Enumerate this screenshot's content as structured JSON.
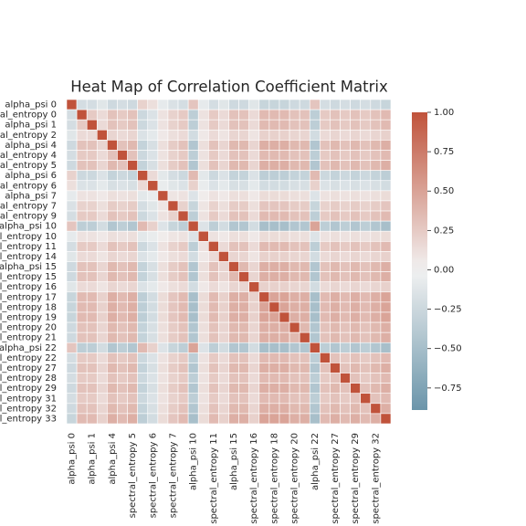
{
  "chart_data": {
    "type": "heatmap",
    "title": "Heat Map of Correlation Coefficient Matrix",
    "y_categories": [
      "alpha_psi 0",
      "spectral_entropy 0",
      "alpha_psi 1",
      "spectral_entropy 2",
      "alpha_psi 4",
      "spectral_entropy 4",
      "spectral_entropy 5",
      "alpha_psi 6",
      "spectral_entropy 6",
      "alpha_psi 7",
      "spectral_entropy 7",
      "spectral_entropy 9",
      "alpha_psi 10",
      "spectral_entropy 10",
      "spectral_entropy 11",
      "spectral_entropy 14",
      "alpha_psi 15",
      "spectral_entropy 15",
      "spectral_entropy 16",
      "spectral_entropy 17",
      "spectral_entropy 18",
      "spectral_entropy 19",
      "spectral_entropy 20",
      "spectral_entropy 21",
      "alpha_psi 22",
      "spectral_entropy 22",
      "spectral_entropy 27",
      "spectral_entropy 28",
      "spectral_entropy 29",
      "spectral_entropy 31",
      "spectral_entropy 32",
      "spectral_entropy 33"
    ],
    "x_categories": [
      "alpha_psi 0",
      null,
      "alpha_psi 1",
      null,
      "alpha_psi 4",
      null,
      "spectral_entropy 5",
      null,
      "spectral_entropy 6",
      null,
      "spectral_entropy 7",
      null,
      "alpha_psi 10",
      null,
      "spectral_entropy 11",
      null,
      "alpha_psi 15",
      null,
      "spectral_entropy 16",
      null,
      "spectral_entropy 18",
      null,
      "spectral_entropy 20",
      null,
      "alpha_psi 22",
      null,
      "spectral_entropy 27",
      null,
      "spectral_entropy 29",
      null,
      "spectral_entropy 32",
      null
    ],
    "values": [
      [
        1,
        -0.2,
        -0.2,
        -0.12,
        -0.24,
        -0.2,
        -0.24,
        0.2,
        0.12,
        -0.08,
        -0.16,
        -0.2,
        0.28,
        -0.08,
        -0.2,
        -0.12,
        -0.24,
        -0.24,
        -0.12,
        -0.28,
        -0.28,
        -0.28,
        -0.24,
        -0.24,
        0.28,
        -0.2,
        -0.24,
        -0.2,
        -0.24,
        -0.2,
        -0.24,
        -0.28
      ],
      [
        -0.2,
        1,
        0.25,
        0.15,
        0.3,
        0.25,
        0.3,
        -0.25,
        -0.15,
        0.1,
        0.2,
        0.25,
        -0.35,
        0.1,
        0.25,
        0.15,
        0.3,
        0.3,
        0.15,
        0.35,
        0.35,
        0.35,
        0.3,
        0.3,
        -0.35,
        0.25,
        0.3,
        0.25,
        0.3,
        0.25,
        0.3,
        0.35
      ],
      [
        -0.2,
        0.25,
        1,
        0.15,
        0.3,
        0.25,
        0.3,
        -0.25,
        -0.15,
        0.1,
        0.2,
        0.25,
        -0.35,
        0.1,
        0.25,
        0.15,
        0.3,
        0.3,
        0.15,
        0.35,
        0.35,
        0.35,
        0.3,
        0.3,
        -0.35,
        0.25,
        0.3,
        0.25,
        0.3,
        0.25,
        0.3,
        0.35
      ],
      [
        -0.12,
        0.15,
        0.15,
        1,
        0.18,
        0.15,
        0.18,
        -0.15,
        -0.09,
        0.06,
        0.12,
        0.15,
        -0.21,
        0.06,
        0.15,
        0.09,
        0.18,
        0.18,
        0.09,
        0.21,
        0.21,
        0.21,
        0.18,
        0.18,
        -0.21,
        0.15,
        0.18,
        0.15,
        0.18,
        0.15,
        0.18,
        0.21
      ],
      [
        -0.24,
        0.3,
        0.3,
        0.18,
        1,
        0.3,
        0.36,
        -0.3,
        -0.18,
        0.12,
        0.24,
        0.3,
        -0.42,
        0.12,
        0.3,
        0.18,
        0.36,
        0.36,
        0.18,
        0.42,
        0.42,
        0.42,
        0.36,
        0.36,
        -0.42,
        0.3,
        0.36,
        0.3,
        0.36,
        0.3,
        0.36,
        0.42
      ],
      [
        -0.2,
        0.25,
        0.25,
        0.15,
        0.3,
        1,
        0.3,
        -0.25,
        -0.15,
        0.1,
        0.2,
        0.25,
        -0.35,
        0.1,
        0.25,
        0.15,
        0.3,
        0.3,
        0.15,
        0.35,
        0.35,
        0.35,
        0.3,
        0.3,
        -0.35,
        0.25,
        0.3,
        0.25,
        0.3,
        0.25,
        0.3,
        0.35
      ],
      [
        -0.24,
        0.3,
        0.3,
        0.18,
        0.36,
        0.3,
        1,
        -0.3,
        -0.18,
        0.12,
        0.24,
        0.3,
        -0.42,
        0.12,
        0.3,
        0.18,
        0.36,
        0.36,
        0.18,
        0.42,
        0.42,
        0.42,
        0.36,
        0.36,
        -0.42,
        0.3,
        0.36,
        0.3,
        0.36,
        0.3,
        0.36,
        0.42
      ],
      [
        0.2,
        -0.25,
        -0.25,
        -0.15,
        -0.3,
        -0.25,
        -0.3,
        1,
        0.15,
        -0.1,
        -0.2,
        -0.25,
        0.35,
        -0.1,
        -0.25,
        -0.15,
        -0.3,
        -0.3,
        -0.15,
        -0.35,
        -0.35,
        -0.35,
        -0.3,
        -0.3,
        0.35,
        -0.25,
        -0.3,
        -0.25,
        -0.3,
        -0.25,
        -0.3,
        -0.35
      ],
      [
        0.12,
        -0.15,
        -0.15,
        -0.09,
        -0.18,
        -0.15,
        -0.18,
        0.15,
        1,
        -0.06,
        -0.12,
        -0.15,
        0.21,
        -0.06,
        -0.15,
        -0.09,
        -0.18,
        -0.18,
        -0.09,
        -0.21,
        -0.21,
        -0.21,
        -0.18,
        -0.18,
        0.21,
        -0.15,
        -0.18,
        -0.15,
        -0.18,
        -0.15,
        -0.18,
        -0.21
      ],
      [
        -0.08,
        0.1,
        0.1,
        0.06,
        0.12,
        0.1,
        0.12,
        -0.1,
        -0.06,
        1,
        0.08,
        0.1,
        -0.14,
        0.04,
        0.1,
        0.06,
        0.12,
        0.12,
        0.06,
        0.14,
        0.14,
        0.14,
        0.12,
        0.12,
        -0.14,
        0.1,
        0.12,
        0.1,
        0.12,
        0.1,
        0.12,
        0.14
      ],
      [
        -0.16,
        0.2,
        0.2,
        0.12,
        0.24,
        0.2,
        0.24,
        -0.2,
        -0.12,
        0.08,
        1,
        0.2,
        -0.28,
        0.08,
        0.2,
        0.12,
        0.24,
        0.24,
        0.12,
        0.28,
        0.28,
        0.28,
        0.24,
        0.24,
        -0.28,
        0.2,
        0.24,
        0.2,
        0.24,
        0.2,
        0.24,
        0.28
      ],
      [
        -0.2,
        0.25,
        0.25,
        0.15,
        0.3,
        0.25,
        0.3,
        -0.25,
        -0.15,
        0.1,
        0.2,
        1,
        -0.35,
        0.1,
        0.25,
        0.15,
        0.3,
        0.3,
        0.15,
        0.35,
        0.35,
        0.35,
        0.3,
        0.3,
        -0.35,
        0.25,
        0.3,
        0.25,
        0.3,
        0.25,
        0.3,
        0.35
      ],
      [
        0.28,
        -0.35,
        -0.35,
        -0.21,
        -0.42,
        -0.35,
        -0.42,
        0.35,
        0.21,
        -0.14,
        -0.28,
        -0.35,
        1,
        -0.14,
        -0.35,
        -0.21,
        -0.42,
        -0.42,
        -0.21,
        -0.49,
        -0.49,
        -0.49,
        -0.42,
        -0.42,
        0.49,
        -0.35,
        -0.42,
        -0.35,
        -0.42,
        -0.35,
        -0.42,
        -0.49
      ],
      [
        -0.08,
        0.1,
        0.1,
        0.06,
        0.12,
        0.1,
        0.12,
        -0.1,
        -0.06,
        0.04,
        0.08,
        0.1,
        -0.14,
        1,
        0.1,
        0.06,
        0.12,
        0.12,
        0.06,
        0.14,
        0.14,
        0.14,
        0.12,
        0.12,
        -0.14,
        0.1,
        0.12,
        0.1,
        0.12,
        0.1,
        0.12,
        0.14
      ],
      [
        -0.2,
        0.25,
        0.25,
        0.15,
        0.3,
        0.25,
        0.3,
        -0.25,
        -0.15,
        0.1,
        0.2,
        0.25,
        -0.35,
        0.1,
        1,
        0.15,
        0.3,
        0.3,
        0.15,
        0.35,
        0.35,
        0.35,
        0.3,
        0.3,
        -0.35,
        0.25,
        0.3,
        0.25,
        0.3,
        0.25,
        0.3,
        0.35
      ],
      [
        -0.12,
        0.15,
        0.15,
        0.09,
        0.18,
        0.15,
        0.18,
        -0.15,
        -0.09,
        0.06,
        0.12,
        0.15,
        -0.21,
        0.06,
        0.15,
        1,
        0.18,
        0.18,
        0.09,
        0.21,
        0.21,
        0.21,
        0.18,
        0.18,
        -0.21,
        0.15,
        0.18,
        0.15,
        0.18,
        0.15,
        0.18,
        0.21
      ],
      [
        -0.24,
        0.3,
        0.3,
        0.18,
        0.36,
        0.3,
        0.36,
        -0.3,
        -0.18,
        0.12,
        0.24,
        0.3,
        -0.42,
        0.12,
        0.3,
        0.18,
        1,
        0.36,
        0.18,
        0.42,
        0.42,
        0.42,
        0.36,
        0.36,
        -0.42,
        0.3,
        0.36,
        0.3,
        0.36,
        0.3,
        0.36,
        0.42
      ],
      [
        -0.24,
        0.3,
        0.3,
        0.18,
        0.36,
        0.3,
        0.36,
        -0.3,
        -0.18,
        0.12,
        0.24,
        0.3,
        -0.42,
        0.12,
        0.3,
        0.18,
        0.36,
        1,
        0.18,
        0.42,
        0.42,
        0.42,
        0.36,
        0.36,
        -0.42,
        0.3,
        0.36,
        0.3,
        0.36,
        0.3,
        0.36,
        0.42
      ],
      [
        -0.12,
        0.15,
        0.15,
        0.09,
        0.18,
        0.15,
        0.18,
        -0.15,
        -0.09,
        0.06,
        0.12,
        0.15,
        -0.21,
        0.06,
        0.15,
        0.09,
        0.18,
        0.18,
        1,
        0.21,
        0.21,
        0.21,
        0.18,
        0.18,
        -0.21,
        0.15,
        0.18,
        0.15,
        0.18,
        0.15,
        0.18,
        0.21
      ],
      [
        -0.28,
        0.35,
        0.35,
        0.21,
        0.42,
        0.35,
        0.42,
        -0.35,
        -0.21,
        0.14,
        0.28,
        0.35,
        -0.49,
        0.14,
        0.35,
        0.21,
        0.42,
        0.42,
        0.21,
        1,
        0.49,
        0.49,
        0.42,
        0.42,
        -0.49,
        0.35,
        0.42,
        0.35,
        0.42,
        0.35,
        0.42,
        0.49
      ],
      [
        -0.28,
        0.35,
        0.35,
        0.21,
        0.42,
        0.35,
        0.42,
        -0.35,
        -0.21,
        0.14,
        0.28,
        0.35,
        -0.49,
        0.14,
        0.35,
        0.21,
        0.42,
        0.42,
        0.21,
        0.49,
        1,
        0.49,
        0.42,
        0.42,
        -0.49,
        0.35,
        0.42,
        0.35,
        0.42,
        0.35,
        0.42,
        0.49
      ],
      [
        -0.28,
        0.35,
        0.35,
        0.21,
        0.42,
        0.35,
        0.42,
        -0.35,
        -0.21,
        0.14,
        0.28,
        0.35,
        -0.49,
        0.14,
        0.35,
        0.21,
        0.42,
        0.42,
        0.21,
        0.49,
        0.49,
        1,
        0.42,
        0.42,
        -0.49,
        0.35,
        0.42,
        0.35,
        0.42,
        0.35,
        0.42,
        0.49
      ],
      [
        -0.24,
        0.3,
        0.3,
        0.18,
        0.36,
        0.3,
        0.36,
        -0.3,
        -0.18,
        0.12,
        0.24,
        0.3,
        -0.42,
        0.12,
        0.3,
        0.18,
        0.36,
        0.36,
        0.18,
        0.42,
        0.42,
        0.42,
        1,
        0.36,
        -0.42,
        0.3,
        0.36,
        0.3,
        0.36,
        0.3,
        0.36,
        0.42
      ],
      [
        -0.24,
        0.3,
        0.3,
        0.18,
        0.36,
        0.3,
        0.36,
        -0.3,
        -0.18,
        0.12,
        0.24,
        0.3,
        -0.42,
        0.12,
        0.3,
        0.18,
        0.36,
        0.36,
        0.18,
        0.42,
        0.42,
        0.42,
        0.36,
        1,
        -0.42,
        0.3,
        0.36,
        0.3,
        0.36,
        0.3,
        0.36,
        0.42
      ],
      [
        0.28,
        -0.35,
        -0.35,
        -0.21,
        -0.42,
        -0.35,
        -0.42,
        0.35,
        0.21,
        -0.14,
        -0.28,
        -0.35,
        0.49,
        -0.14,
        -0.35,
        -0.21,
        -0.42,
        -0.42,
        -0.21,
        -0.49,
        -0.49,
        -0.49,
        -0.42,
        -0.42,
        1,
        -0.35,
        -0.42,
        -0.35,
        -0.42,
        -0.35,
        -0.42,
        -0.49
      ],
      [
        -0.2,
        0.25,
        0.25,
        0.15,
        0.3,
        0.25,
        0.3,
        -0.25,
        -0.15,
        0.1,
        0.2,
        0.25,
        -0.35,
        0.1,
        0.25,
        0.15,
        0.3,
        0.3,
        0.15,
        0.35,
        0.35,
        0.35,
        0.3,
        0.3,
        -0.35,
        1,
        0.3,
        0.25,
        0.3,
        0.25,
        0.3,
        0.35
      ],
      [
        -0.24,
        0.3,
        0.3,
        0.18,
        0.36,
        0.3,
        0.36,
        -0.3,
        -0.18,
        0.12,
        0.24,
        0.3,
        -0.42,
        0.12,
        0.3,
        0.18,
        0.36,
        0.36,
        0.18,
        0.42,
        0.42,
        0.42,
        0.36,
        0.36,
        -0.42,
        0.3,
        1,
        0.3,
        0.36,
        0.3,
        0.36,
        0.42
      ],
      [
        -0.2,
        0.25,
        0.25,
        0.15,
        0.3,
        0.25,
        0.3,
        -0.25,
        -0.15,
        0.1,
        0.2,
        0.25,
        -0.35,
        0.1,
        0.25,
        0.15,
        0.3,
        0.3,
        0.15,
        0.35,
        0.35,
        0.35,
        0.3,
        0.3,
        -0.35,
        0.25,
        0.3,
        1,
        0.3,
        0.25,
        0.3,
        0.35
      ],
      [
        -0.24,
        0.3,
        0.3,
        0.18,
        0.36,
        0.3,
        0.36,
        -0.3,
        -0.18,
        0.12,
        0.24,
        0.3,
        -0.42,
        0.12,
        0.3,
        0.18,
        0.36,
        0.36,
        0.18,
        0.42,
        0.42,
        0.42,
        0.36,
        0.36,
        -0.42,
        0.3,
        0.36,
        0.3,
        1,
        0.3,
        0.36,
        0.42
      ],
      [
        -0.2,
        0.25,
        0.25,
        0.15,
        0.3,
        0.25,
        0.3,
        -0.25,
        -0.15,
        0.1,
        0.2,
        0.25,
        -0.35,
        0.1,
        0.25,
        0.15,
        0.3,
        0.3,
        0.15,
        0.35,
        0.35,
        0.35,
        0.3,
        0.3,
        -0.35,
        0.25,
        0.3,
        0.25,
        0.3,
        1,
        0.3,
        0.35
      ],
      [
        -0.24,
        0.3,
        0.3,
        0.18,
        0.36,
        0.3,
        0.36,
        -0.3,
        -0.18,
        0.12,
        0.24,
        0.3,
        -0.42,
        0.12,
        0.3,
        0.18,
        0.36,
        0.36,
        0.18,
        0.42,
        0.42,
        0.42,
        0.36,
        0.36,
        -0.42,
        0.3,
        0.36,
        0.3,
        0.36,
        0.3,
        1,
        0.42
      ],
      [
        -0.28,
        0.35,
        0.35,
        0.21,
        0.42,
        0.35,
        0.42,
        -0.35,
        -0.21,
        0.14,
        0.28,
        0.35,
        -0.49,
        0.14,
        0.35,
        0.21,
        0.42,
        0.42,
        0.21,
        0.49,
        0.49,
        0.49,
        0.42,
        0.42,
        -0.49,
        0.35,
        0.42,
        0.35,
        0.42,
        0.35,
        0.42,
        1
      ]
    ],
    "clim": [
      -0.89,
      1
    ],
    "cticks": [
      {
        "value": 1,
        "label": "1.00"
      },
      {
        "value": 0.75,
        "label": "0.75"
      },
      {
        "value": 0.5,
        "label": "0.50"
      },
      {
        "value": 0.25,
        "label": "0.25"
      },
      {
        "value": 0,
        "label": "0.00"
      },
      {
        "value": -0.25,
        "label": "−0.25"
      },
      {
        "value": -0.5,
        "label": "−0.50"
      },
      {
        "value": -0.75,
        "label": "−0.75"
      }
    ],
    "colors": {
      "low": "#5a8aa1",
      "mid": "#f2f2f2",
      "high": "#c0533b"
    }
  }
}
